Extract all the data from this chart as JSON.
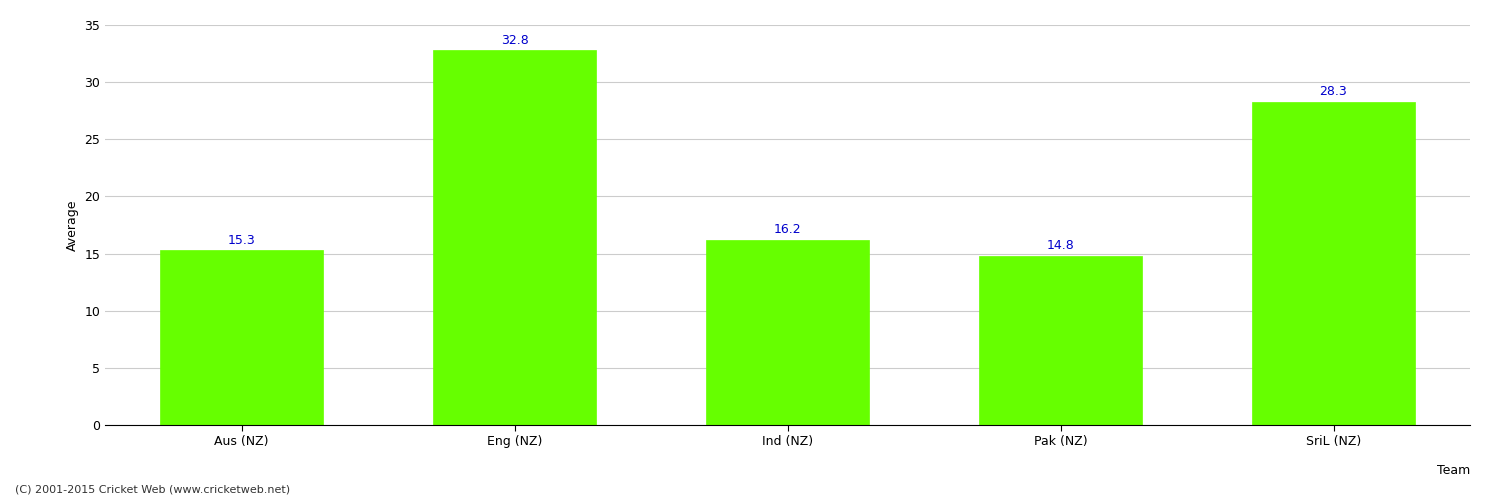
{
  "categories": [
    "Aus (NZ)",
    "Eng (NZ)",
    "Ind (NZ)",
    "Pak (NZ)",
    "SriL (NZ)"
  ],
  "values": [
    15.3,
    32.8,
    16.2,
    14.8,
    28.3
  ],
  "bar_color": "#66ff00",
  "bar_edge_color": "#66ff00",
  "label_color": "#0000cc",
  "label_fontsize": 9,
  "xlabel": "Team",
  "ylabel": "Average",
  "ylim": [
    0,
    35
  ],
  "yticks": [
    0,
    5,
    10,
    15,
    20,
    25,
    30,
    35
  ],
  "grid_color": "#cccccc",
  "background_color": "#ffffff",
  "tick_fontsize": 9,
  "axis_label_fontsize": 9,
  "footer_text": "(C) 2001-2015 Cricket Web (www.cricketweb.net)",
  "footer_fontsize": 8,
  "footer_color": "#333333",
  "bar_width": 0.6
}
